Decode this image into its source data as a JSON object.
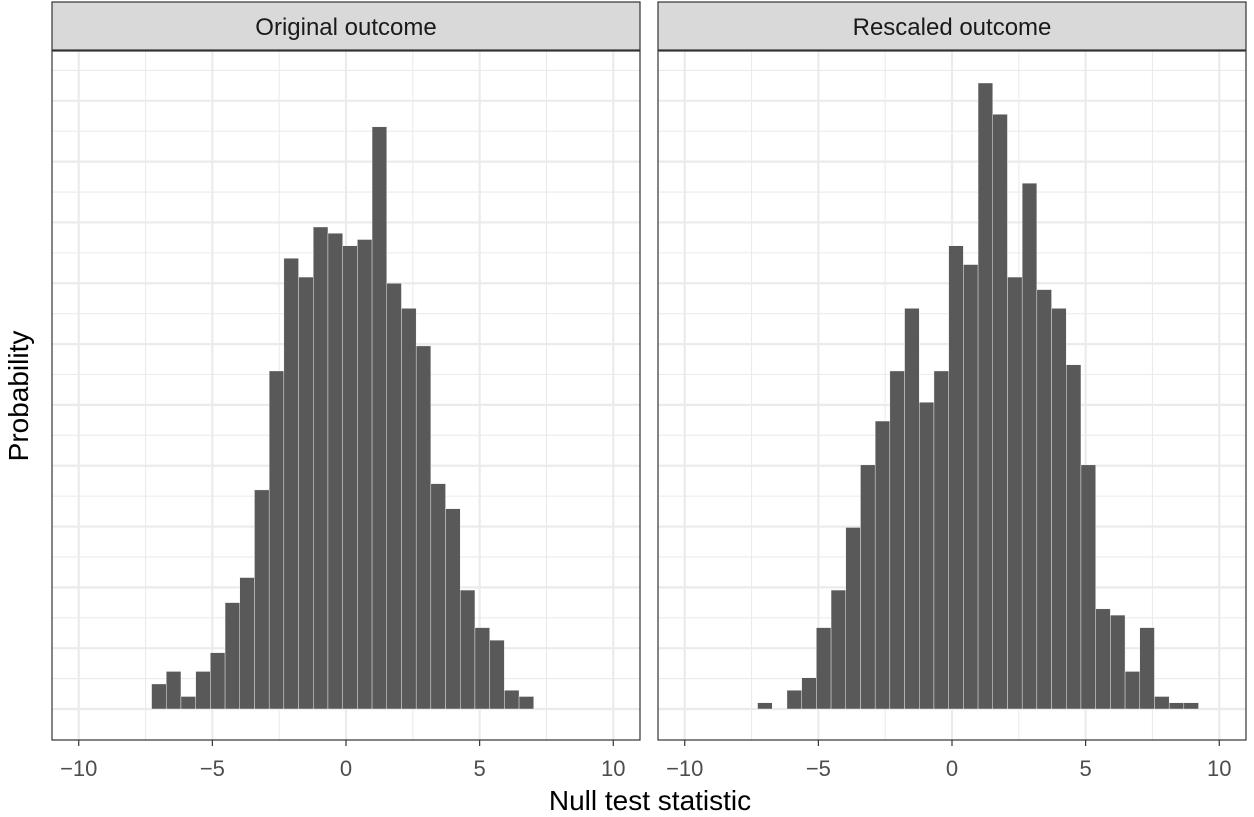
{
  "chart_data": [
    {
      "type": "bar",
      "panel_title": "Original outcome",
      "xlim": [
        -11,
        11
      ],
      "xticks": [
        -10,
        -5,
        0,
        5,
        10
      ],
      "bin_width": 0.55,
      "x": [
        -7.0,
        -6.45,
        -5.9,
        -5.35,
        -4.8,
        -4.25,
        -3.7,
        -3.15,
        -2.6,
        -2.05,
        -1.5,
        -0.95,
        -0.4,
        0.15,
        0.7,
        1.25,
        1.8,
        2.35,
        2.9,
        3.45,
        4.0,
        4.55,
        5.1,
        5.65,
        6.2,
        6.75
      ],
      "values": [
        0.04,
        0.06,
        0.02,
        0.06,
        0.09,
        0.17,
        0.21,
        0.35,
        0.54,
        0.72,
        0.69,
        0.77,
        0.76,
        0.74,
        0.75,
        0.93,
        0.68,
        0.64,
        0.58,
        0.36,
        0.32,
        0.19,
        0.13,
        0.11,
        0.03,
        0.02
      ]
    },
    {
      "type": "bar",
      "panel_title": "Rescaled outcome",
      "xlim": [
        -11,
        11
      ],
      "xticks": [
        -10,
        -5,
        0,
        5,
        10
      ],
      "bin_width": 0.55,
      "x": [
        -7.0,
        -6.45,
        -5.9,
        -5.35,
        -4.8,
        -4.25,
        -3.7,
        -3.15,
        -2.6,
        -2.05,
        -1.5,
        -0.95,
        -0.4,
        0.15,
        0.7,
        1.25,
        1.8,
        2.35,
        2.9,
        3.45,
        4.0,
        4.55,
        5.1,
        5.65,
        6.2,
        6.75,
        7.3,
        7.85,
        8.4,
        8.95
      ],
      "values": [
        0.01,
        0.0,
        0.03,
        0.05,
        0.13,
        0.19,
        0.29,
        0.39,
        0.46,
        0.54,
        0.64,
        0.49,
        0.54,
        0.74,
        0.71,
        1.0,
        0.95,
        0.69,
        0.84,
        0.67,
        0.64,
        0.55,
        0.39,
        0.16,
        0.15,
        0.06,
        0.13,
        0.02,
        0.01,
        0.01
      ]
    }
  ],
  "xlabel": "Null test statistic",
  "ylabel": "Probability"
}
